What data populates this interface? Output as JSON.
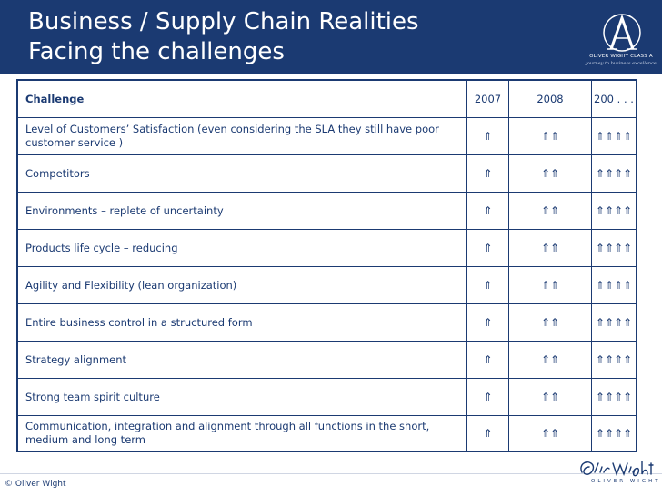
{
  "header": {
    "title_line1": "Business / Supply Chain Realities",
    "title_line2": "Facing the challenges",
    "logo_line1": "OLIVER WIGHT CLASS A",
    "logo_line2": "journey to business excellence"
  },
  "table": {
    "columns": [
      "Challenge",
      "2007",
      "2008",
      "200 . . ."
    ],
    "rows": [
      {
        "challenge": "Level of Customers’ Satisfaction (even considering the SLA they still have poor customer service )",
        "y2007": "⇑",
        "y2008": "⇑⇑",
        "y200x": "⇑⇑⇑⇑"
      },
      {
        "challenge": "Competitors",
        "y2007": "⇑",
        "y2008": "⇑⇑",
        "y200x": "⇑⇑⇑⇑"
      },
      {
        "challenge": "Environments – replete of uncertainty",
        "y2007": "⇑",
        "y2008": "⇑⇑",
        "y200x": "⇑⇑⇑⇑"
      },
      {
        "challenge": "Products life cycle – reducing",
        "y2007": "⇑",
        "y2008": "⇑⇑",
        "y200x": "⇑⇑⇑⇑"
      },
      {
        "challenge": "Agility and Flexibility (lean organization)",
        "y2007": "⇑",
        "y2008": "⇑⇑",
        "y200x": "⇑⇑⇑⇑"
      },
      {
        "challenge": "Entire business control in a structured form",
        "y2007": "⇑",
        "y2008": "⇑⇑",
        "y200x": "⇑⇑⇑⇑"
      },
      {
        "challenge": "Strategy alignment",
        "y2007": "⇑",
        "y2008": "⇑⇑",
        "y200x": "⇑⇑⇑⇑"
      },
      {
        "challenge": "Strong team spirit culture",
        "y2007": "⇑",
        "y2008": "⇑⇑",
        "y200x": "⇑⇑⇑⇑"
      },
      {
        "challenge": "Communication, integration and alignment through all functions in the short, medium and long term",
        "y2007": "⇑",
        "y2008": "⇑⇑",
        "y200x": "⇑⇑⇑⇑"
      }
    ]
  },
  "footer": {
    "copyright": "© Oliver Wight",
    "brand_sub": "OLIVER WIGHT"
  },
  "colors": {
    "brand_navy": "#1b3a72",
    "background": "#ffffff"
  },
  "icons": {
    "logo": "class-a-logo-icon",
    "signature": "oliver-wight-signature-icon"
  }
}
